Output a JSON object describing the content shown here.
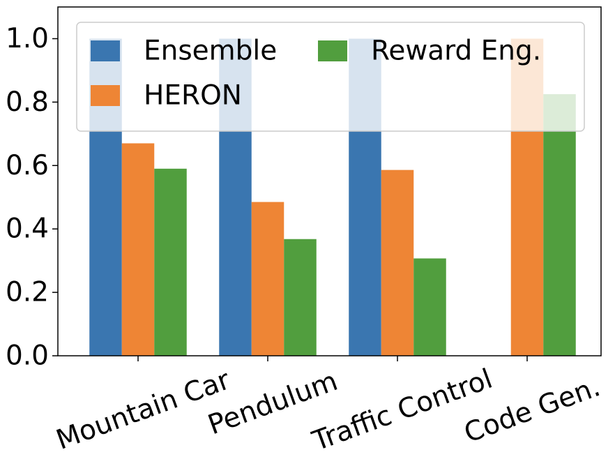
{
  "chart_data": {
    "type": "bar",
    "categories": [
      "Mountain Car",
      "Pendulum",
      "Traffic Control",
      "Code Gen."
    ],
    "series": [
      {
        "name": "Ensemble",
        "color": "#3a76b0",
        "values": [
          1.0,
          1.0,
          1.0,
          null
        ]
      },
      {
        "name": "HERON",
        "color": "#ee8535",
        "values": [
          0.67,
          0.485,
          0.586,
          1.0
        ]
      },
      {
        "name": "Reward Eng.",
        "color": "#519e3e",
        "values": [
          0.59,
          0.368,
          0.307,
          0.825
        ]
      }
    ],
    "ylim": [
      0,
      1.1
    ],
    "yticks": [
      {
        "value": 0,
        "label": "0.0"
      },
      0.2,
      0.4,
      0.6,
      0.8,
      {
        "value": 1,
        "label": "1.0"
      }
    ],
    "legend": "upper left"
  }
}
